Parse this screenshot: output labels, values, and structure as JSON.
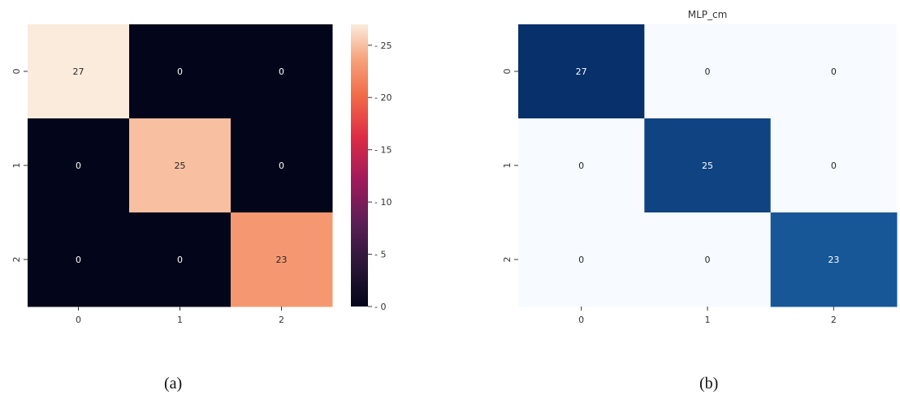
{
  "chart_data": [
    {
      "type": "heatmap",
      "panel": "a",
      "title": "",
      "caption": "(a)",
      "x_tick_labels": [
        "0",
        "1",
        "2"
      ],
      "y_tick_labels": [
        "0",
        "1",
        "2"
      ],
      "matrix": [
        [
          27,
          0,
          0
        ],
        [
          0,
          25,
          0
        ],
        [
          0,
          0,
          23
        ]
      ],
      "colormap": "rocket",
      "colorbar": {
        "min": 0,
        "max": 27,
        "ticks": [
          0,
          5,
          10,
          15,
          20,
          25
        ]
      }
    },
    {
      "type": "heatmap",
      "panel": "b",
      "title": "MLP_cm",
      "caption": "(b)",
      "x_tick_labels": [
        "0",
        "1",
        "2"
      ],
      "y_tick_labels": [
        "0",
        "1",
        "2"
      ],
      "matrix": [
        [
          27,
          0,
          0
        ],
        [
          0,
          25,
          0
        ],
        [
          0,
          0,
          23
        ]
      ],
      "colormap": "Blues"
    }
  ]
}
